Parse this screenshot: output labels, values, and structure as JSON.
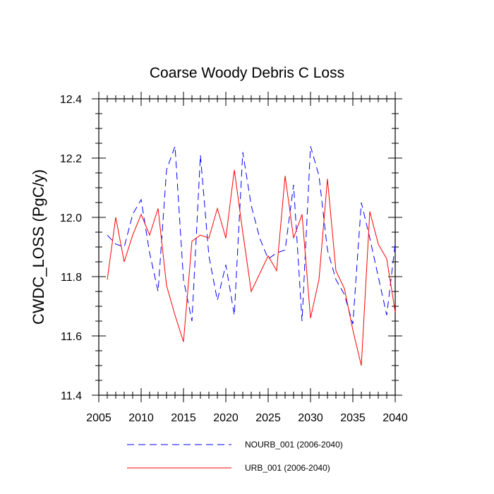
{
  "chart_data": {
    "type": "line",
    "title": "Coarse Woody Debris C Loss",
    "xlabel": "",
    "ylabel": "CWDC_LOSS  (PgC/y)",
    "xlim": [
      2005,
      2040
    ],
    "ylim": [
      11.4,
      12.4
    ],
    "xticks": [
      2005,
      2010,
      2015,
      2020,
      2025,
      2030,
      2035,
      2040
    ],
    "xtick_labels": [
      "2005",
      "2010",
      "2015",
      "2020",
      "2025",
      "2030",
      "2035",
      "2040"
    ],
    "yticks": [
      11.4,
      11.6,
      11.8,
      12.0,
      12.2,
      12.4
    ],
    "ytick_labels": [
      "11.4",
      "11.6",
      "11.8",
      "12.0",
      "12.2",
      "12.4"
    ],
    "x": [
      2006,
      2007,
      2008,
      2009,
      2010,
      2011,
      2012,
      2013,
      2014,
      2015,
      2016,
      2017,
      2018,
      2019,
      2020,
      2021,
      2022,
      2023,
      2024,
      2025,
      2026,
      2027,
      2028,
      2029,
      2030,
      2031,
      2032,
      2033,
      2034,
      2035,
      2036,
      2037,
      2038,
      2039,
      2040
    ],
    "series": [
      {
        "name": "NOURB_001 (2006-2040)",
        "color": "#0000ff",
        "style": "dashed",
        "values": [
          11.94,
          11.91,
          11.9,
          12.01,
          12.06,
          11.88,
          11.75,
          12.16,
          12.24,
          11.79,
          11.65,
          12.21,
          11.87,
          11.72,
          11.84,
          11.67,
          12.22,
          12.04,
          11.93,
          11.86,
          11.88,
          11.89,
          12.11,
          11.65,
          12.24,
          12.14,
          11.89,
          11.79,
          11.74,
          11.64,
          12.05,
          11.93,
          11.8,
          11.67,
          11.91
        ]
      },
      {
        "name": "URB_001 (2006-2040)",
        "color": "#ff0000",
        "style": "solid",
        "values": [
          11.79,
          12.0,
          11.85,
          11.94,
          12.01,
          11.94,
          12.03,
          11.77,
          11.67,
          11.58,
          11.92,
          11.94,
          11.93,
          12.03,
          11.93,
          12.16,
          11.95,
          11.75,
          11.81,
          11.87,
          11.82,
          12.14,
          11.93,
          12.01,
          11.66,
          11.79,
          12.13,
          11.82,
          11.76,
          11.62,
          11.5,
          12.02,
          11.91,
          11.86,
          11.68
        ]
      }
    ],
    "legend_position": "bottom"
  }
}
